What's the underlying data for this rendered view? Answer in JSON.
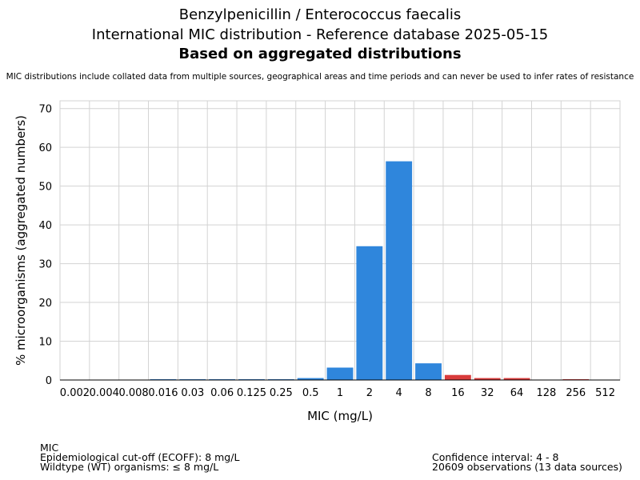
{
  "title": {
    "line1": "Benzylpenicillin / Enterococcus faecalis",
    "line2": "International MIC distribution - Reference database 2025-05-15",
    "line3": "Based on aggregated distributions",
    "note": "MIC distributions include collated data from multiple sources, geographical areas and time periods and can never be used to infer rates of resistance"
  },
  "footer": {
    "left": [
      "MIC",
      "Epidemiological cut-off (ECOFF): 8 mg/L",
      "Wildtype (WT) organisms: ≤ 8 mg/L"
    ],
    "right": [
      "Confidence interval: 4 - 8",
      "20609 observations (13 data sources)"
    ]
  },
  "colors": {
    "wildtype": "#2f86dc",
    "non_wildtype": "#d93b3b",
    "grid": "#d3d3d3"
  },
  "chart_data": {
    "type": "bar",
    "xlabel": "MIC (mg/L)",
    "ylabel": "% microorganisms (aggregated numbers)",
    "ylim": [
      0,
      72
    ],
    "yticks": [
      0,
      10,
      20,
      30,
      40,
      50,
      60,
      70
    ],
    "grid": true,
    "categories": [
      "0.002",
      "0.004",
      "0.008",
      "0.016",
      "0.03",
      "0.06",
      "0.125",
      "0.25",
      "0.5",
      "1",
      "2",
      "4",
      "8",
      "16",
      "32",
      "64",
      "128",
      "256",
      "512"
    ],
    "values": [
      0,
      0,
      0,
      0.2,
      0.2,
      0.2,
      0.2,
      0.2,
      0.5,
      3.2,
      34.5,
      56.4,
      4.3,
      1.3,
      0.5,
      0.5,
      0,
      0.2,
      0
    ],
    "wildtype": [
      true,
      true,
      true,
      true,
      true,
      true,
      true,
      true,
      true,
      true,
      true,
      true,
      true,
      false,
      false,
      false,
      false,
      false,
      false
    ]
  }
}
